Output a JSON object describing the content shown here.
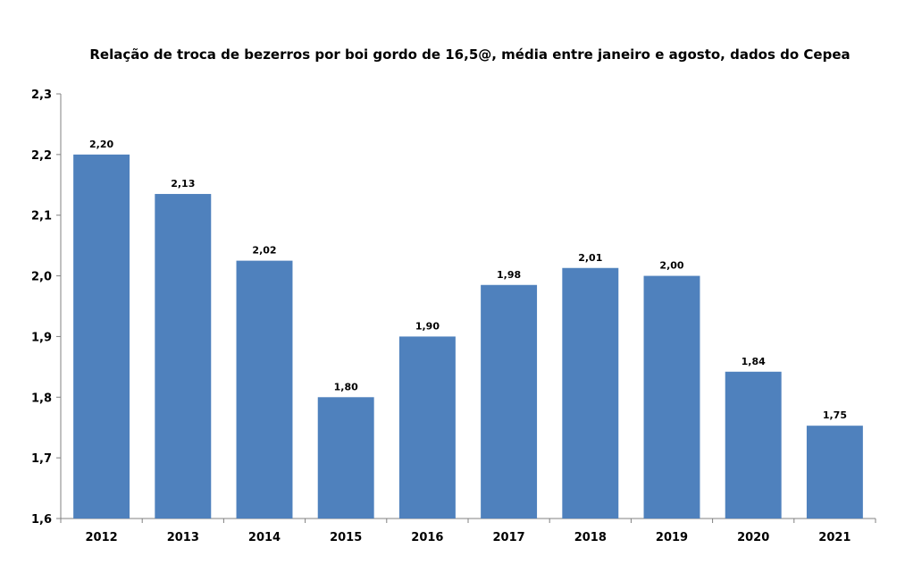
{
  "chart_data": {
    "type": "bar",
    "title": "Relação de troca de bezerros por boi gordo de 16,5@, média entre janeiro e agosto, dados do Cepea",
    "xlabel": "",
    "ylabel": "",
    "categories": [
      "2012",
      "2013",
      "2014",
      "2015",
      "2016",
      "2017",
      "2018",
      "2019",
      "2020",
      "2021"
    ],
    "values": [
      2.2,
      2.135,
      2.025,
      1.8,
      1.9,
      1.985,
      2.013,
      2.0,
      1.842,
      1.753
    ],
    "data_labels": [
      "2,20",
      "2,13",
      "2,02",
      "1,80",
      "1,90",
      "1,98",
      "2,01",
      "2,00",
      "1,84",
      "1,75"
    ],
    "ylim": [
      1.6,
      2.3
    ],
    "yticks": [
      1.6,
      1.7,
      1.8,
      1.9,
      2.0,
      2.1,
      2.2,
      2.3
    ],
    "ytick_labels": [
      "1,6",
      "1,7",
      "1,8",
      "1,9",
      "2,0",
      "2,1",
      "2,2",
      "2,3"
    ],
    "bar_color": "#4F81BD",
    "grid": false,
    "legend": "none"
  }
}
